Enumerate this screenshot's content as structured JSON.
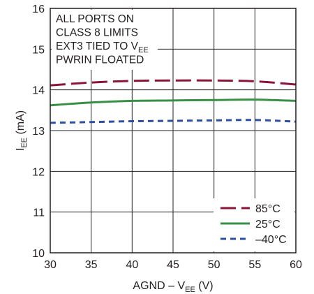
{
  "chart_data": {
    "type": "line",
    "xlabel": {
      "main": "AGND – V",
      "sub": "EE",
      "tail": " (V)"
    },
    "ylabel": {
      "main": "I",
      "sub": "EE",
      "tail": " (mA)"
    },
    "xlim": [
      30,
      60
    ],
    "ylim": [
      10,
      16
    ],
    "xticks": [
      "30",
      "35",
      "40",
      "45",
      "50",
      "55",
      "60"
    ],
    "yticks": [
      "10",
      "11",
      "12",
      "13",
      "14",
      "15",
      "16"
    ],
    "grid": true,
    "legend_position": "bottom-right",
    "annotations": [
      {
        "text": "ALL PORTS ON"
      },
      {
        "text": "CLASS 8 LIMITS"
      },
      {
        "text": "EXT3 TIED TO V",
        "sub": "EE"
      },
      {
        "text": "PWRIN FLOATED"
      }
    ],
    "x": [
      30,
      35,
      40,
      45,
      50,
      55,
      60
    ],
    "series": [
      {
        "name": "85°C",
        "values": [
          14.11,
          14.18,
          14.22,
          14.23,
          14.23,
          14.21,
          14.13
        ],
        "color": "#8b1538",
        "dash": "22 8"
      },
      {
        "name": "25°C",
        "values": [
          13.62,
          13.69,
          13.73,
          13.74,
          13.75,
          13.76,
          13.73
        ],
        "color": "#3a8f47",
        "dash": ""
      },
      {
        "name": "–40°C",
        "values": [
          13.19,
          13.21,
          13.23,
          13.24,
          13.25,
          13.26,
          13.22
        ],
        "color": "#2e4f9e",
        "dash": "8 6"
      }
    ]
  }
}
